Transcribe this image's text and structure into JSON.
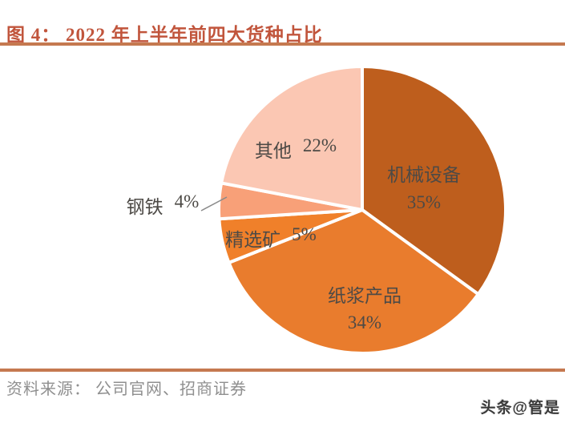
{
  "header": {
    "title": "图 4： 2022 年上半年前四大货种占比"
  },
  "chart_data": {
    "type": "pie",
    "title": "2022 年上半年前四大货种占比",
    "start_angle_deg": 0,
    "direction": "clockwise",
    "slices": [
      {
        "label": "机械设备",
        "value": 35,
        "pct": "35%",
        "color": "#BE5E1D"
      },
      {
        "label": "纸浆产品",
        "value": 34,
        "pct": "34%",
        "color": "#E97C2D"
      },
      {
        "label": "精选矿",
        "value": 5,
        "pct": "5%",
        "color": "#F0802A"
      },
      {
        "label": "钢铁",
        "value": 4,
        "pct": "4%",
        "color": "#F8A078"
      },
      {
        "label": "其他",
        "value": 22,
        "pct": "22%",
        "color": "#FBC7B3"
      }
    ],
    "separator_color": "#ffffff",
    "label_color": "#4d4a46",
    "legend_position": "none",
    "labels_on_chart": true
  },
  "footer": {
    "source": "资料来源： 公司官网、招商证券"
  },
  "watermark": {
    "text": "头条@管是"
  },
  "colors": {
    "title_text": "#C1553C",
    "rule": "#C57950",
    "source_text": "#8F8F8F",
    "watermark_text": "#3a3a3a",
    "leader_line": "#8a8a8a",
    "background": "#ffffff"
  }
}
